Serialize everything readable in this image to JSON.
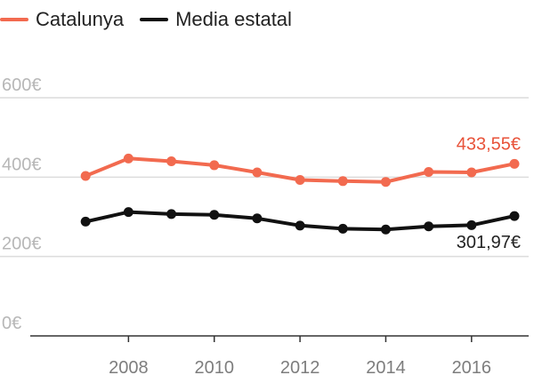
{
  "legend": [
    {
      "label": "Catalunya",
      "color": "#f26a4f"
    },
    {
      "label": "Media estatal",
      "color": "#111111"
    }
  ],
  "chart_data": {
    "type": "line",
    "x": [
      2007,
      2008,
      2009,
      2010,
      2011,
      2012,
      2013,
      2014,
      2015,
      2016,
      2017
    ],
    "series": [
      {
        "name": "Catalunya",
        "color": "#f26a4f",
        "values": [
          403,
          447,
          440,
          430,
          412,
          393,
          390,
          388,
          413,
          412,
          433.55
        ]
      },
      {
        "name": "Media estatal",
        "color": "#111111",
        "values": [
          288,
          312,
          307,
          305,
          296,
          278,
          270,
          268,
          276,
          279,
          301.97
        ]
      }
    ],
    "end_labels": [
      {
        "series": "Catalunya",
        "text": "433,55€",
        "color": "#e8533a"
      },
      {
        "series": "Media estatal",
        "text": "301,97€",
        "color": "#222222"
      }
    ],
    "y_ticks": [
      {
        "value": 0,
        "label": "0€"
      },
      {
        "value": 200,
        "label": "200€"
      },
      {
        "value": 400,
        "label": "400€"
      },
      {
        "value": 600,
        "label": "600€"
      }
    ],
    "x_ticks": [
      {
        "value": 2008,
        "label": "2008"
      },
      {
        "value": 2010,
        "label": "2010"
      },
      {
        "value": 2012,
        "label": "2012"
      },
      {
        "value": 2014,
        "label": "2014"
      },
      {
        "value": 2016,
        "label": "2016"
      }
    ],
    "xlim": [
      2006,
      2017
    ],
    "ylim": [
      0,
      600
    ],
    "grid": true
  }
}
